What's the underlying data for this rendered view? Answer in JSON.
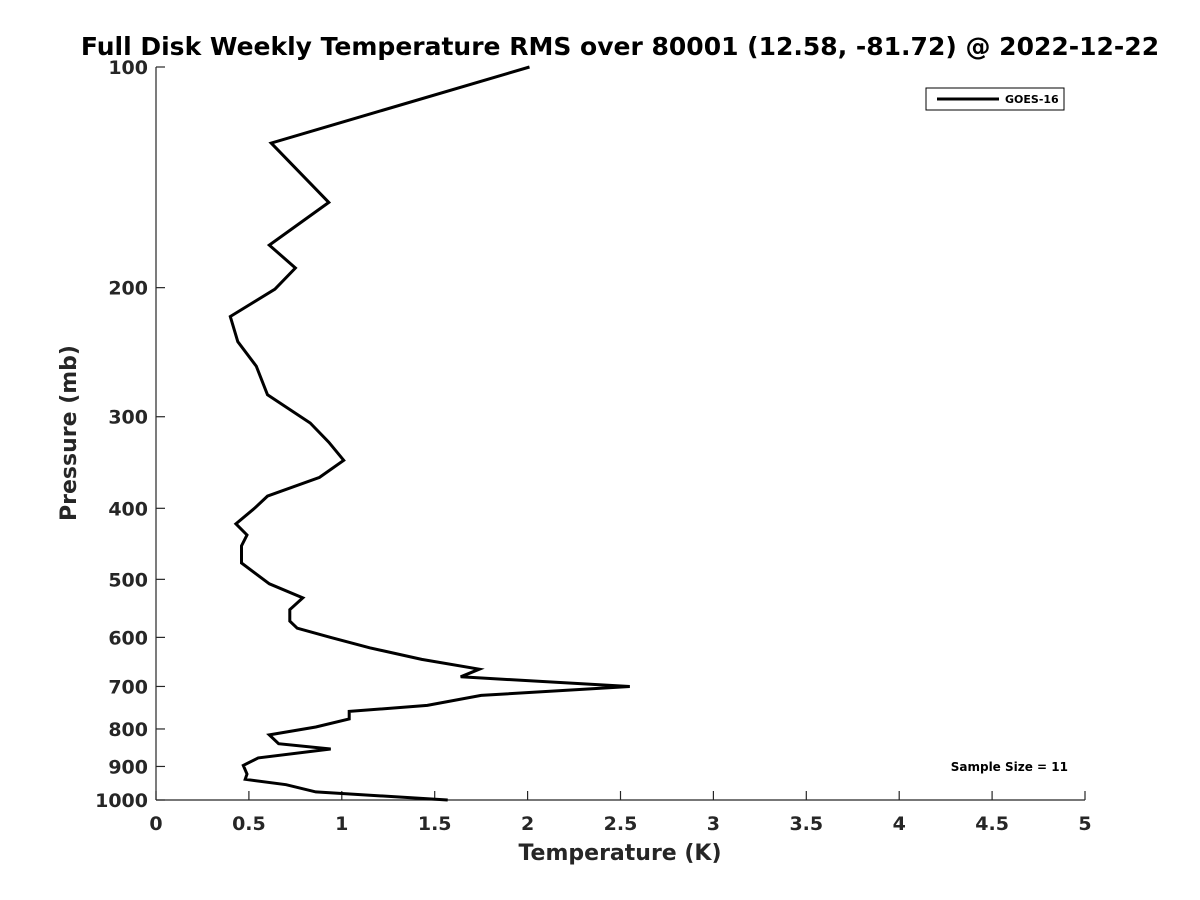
{
  "chart_data": {
    "type": "line",
    "title": "Full Disk Weekly Temperature RMS over 80001 (12.58, -81.72) @ 2022-12-22",
    "xlabel": "Temperature (K)",
    "ylabel": "Pressure (mb)",
    "xlim": [
      0,
      5
    ],
    "ylim": [
      100,
      1000
    ],
    "y_scale": "log",
    "y_reversed": true,
    "grid": false,
    "legend_position": "top-right",
    "x_ticks": [
      0,
      0.5,
      1,
      1.5,
      2,
      2.5,
      3,
      3.5,
      4,
      4.5,
      5
    ],
    "x_tick_labels": [
      "0",
      "0.5",
      "1",
      "1.5",
      "2",
      "2.5",
      "3",
      "3.5",
      "4",
      "4.5",
      "5"
    ],
    "y_ticks": [
      100,
      200,
      300,
      400,
      500,
      600,
      700,
      800,
      900,
      1000
    ],
    "y_tick_labels": [
      "100",
      "200",
      "300",
      "400",
      "500",
      "600",
      "700",
      "800",
      "900",
      "1000"
    ],
    "series": [
      {
        "name": "GOES-16",
        "color": "#000000",
        "points": [
          [
            2.01,
            100
          ],
          [
            0.62,
            127
          ],
          [
            0.93,
            153
          ],
          [
            0.61,
            175
          ],
          [
            0.75,
            188
          ],
          [
            0.64,
            201
          ],
          [
            0.4,
            219
          ],
          [
            0.44,
            237
          ],
          [
            0.54,
            256
          ],
          [
            0.6,
            280
          ],
          [
            0.83,
            306
          ],
          [
            0.93,
            325
          ],
          [
            1.01,
            344
          ],
          [
            0.88,
            363
          ],
          [
            0.6,
            385
          ],
          [
            0.53,
            400
          ],
          [
            0.43,
            420
          ],
          [
            0.49,
            435
          ],
          [
            0.46,
            450
          ],
          [
            0.46,
            475
          ],
          [
            0.61,
            507
          ],
          [
            0.79,
            530
          ],
          [
            0.72,
            550
          ],
          [
            0.72,
            570
          ],
          [
            0.76,
            583
          ],
          [
            0.94,
            600
          ],
          [
            1.15,
            620
          ],
          [
            1.43,
            643
          ],
          [
            1.74,
            663
          ],
          [
            1.64,
            679
          ],
          [
            2.55,
            700
          ],
          [
            1.75,
            720
          ],
          [
            1.46,
            743
          ],
          [
            1.04,
            757
          ],
          [
            1.04,
            775
          ],
          [
            0.86,
            795
          ],
          [
            0.61,
            815
          ],
          [
            0.66,
            838
          ],
          [
            0.94,
            852
          ],
          [
            0.55,
            876
          ],
          [
            0.47,
            897
          ],
          [
            0.49,
            922
          ],
          [
            0.48,
            937
          ],
          [
            0.7,
            953
          ],
          [
            0.86,
            975
          ],
          [
            1.57,
            1000
          ]
        ]
      }
    ],
    "annotations": [
      "Sample Size = 11"
    ]
  }
}
